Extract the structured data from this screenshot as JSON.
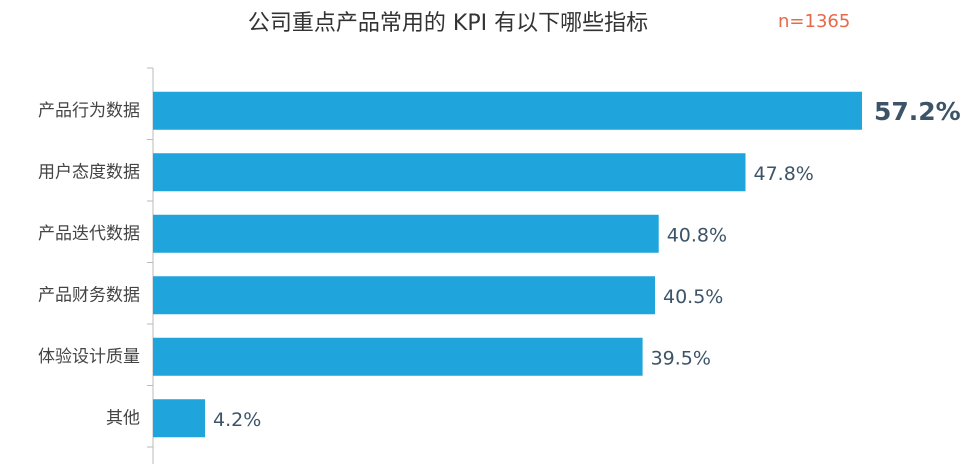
{
  "chart_data": {
    "type": "bar",
    "orientation": "horizontal",
    "title": "公司重点产品常用的 KPI 有以下哪些指标",
    "annotation": "n=1365",
    "categories": [
      "产品行为数据",
      "用户态度数据",
      "产品迭代数据",
      "产品财务数据",
      "体验设计质量",
      "其他"
    ],
    "values": [
      57.2,
      47.8,
      40.8,
      40.5,
      39.5,
      4.2
    ],
    "value_labels": [
      "57.2%",
      "47.8%",
      "40.8%",
      "40.5%",
      "39.5%",
      "4.2%"
    ],
    "color": "#20a4dc"
  }
}
